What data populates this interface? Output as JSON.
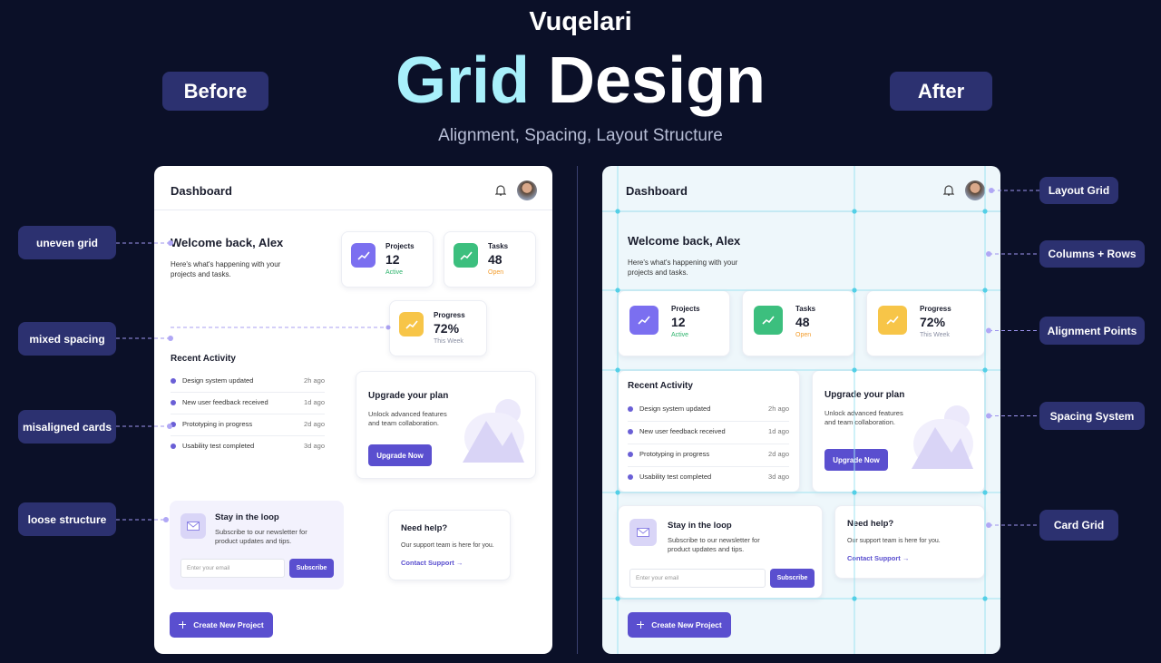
{
  "brand": "Vuqelari",
  "title": {
    "highlight": "Grid",
    "rest": "Design"
  },
  "subtitle": "Alignment, Spacing, Layout Structure",
  "before_label": "Before",
  "after_label": "After",
  "left_annotations": [
    "uneven grid",
    "mixed spacing",
    "misaligned cards",
    "loose structure"
  ],
  "right_annotations": [
    "Layout Grid",
    "Columns + Rows",
    "Alignment Points",
    "Spacing System",
    "Card Grid"
  ],
  "dashboard": {
    "header": "Dashboard",
    "welcome": "Welcome back, Alex",
    "intro": "Here's what's happening with your projects and tasks.",
    "stats": [
      {
        "label": "Projects",
        "value": "12",
        "note": "Active"
      },
      {
        "label": "Tasks",
        "value": "48",
        "note": "Open"
      },
      {
        "label": "Progress",
        "value": "72%",
        "note": "This Week"
      }
    ],
    "activity": {
      "title": "Recent Activity",
      "items": [
        {
          "text": "Design system updated",
          "time": "2h ago"
        },
        {
          "text": "New user feedback received",
          "time": "1d ago"
        },
        {
          "text": "Prototyping in progress",
          "time": "2d ago"
        },
        {
          "text": "Usability test completed",
          "time": "3d ago"
        }
      ]
    },
    "upgrade": {
      "title": "Upgrade your plan",
      "text": "Unlock advanced features and team collaboration.",
      "button": "Upgrade Now"
    },
    "newsletter": {
      "title": "Stay in the loop",
      "text": "Subscribe to our newsletter for product updates and tips.",
      "placeholder": "Enter your email",
      "button": "Subscribe"
    },
    "help": {
      "title": "Need help?",
      "text": "Our support team is here for you.",
      "link": "Contact Support →"
    },
    "create_button": "Create New Project"
  }
}
